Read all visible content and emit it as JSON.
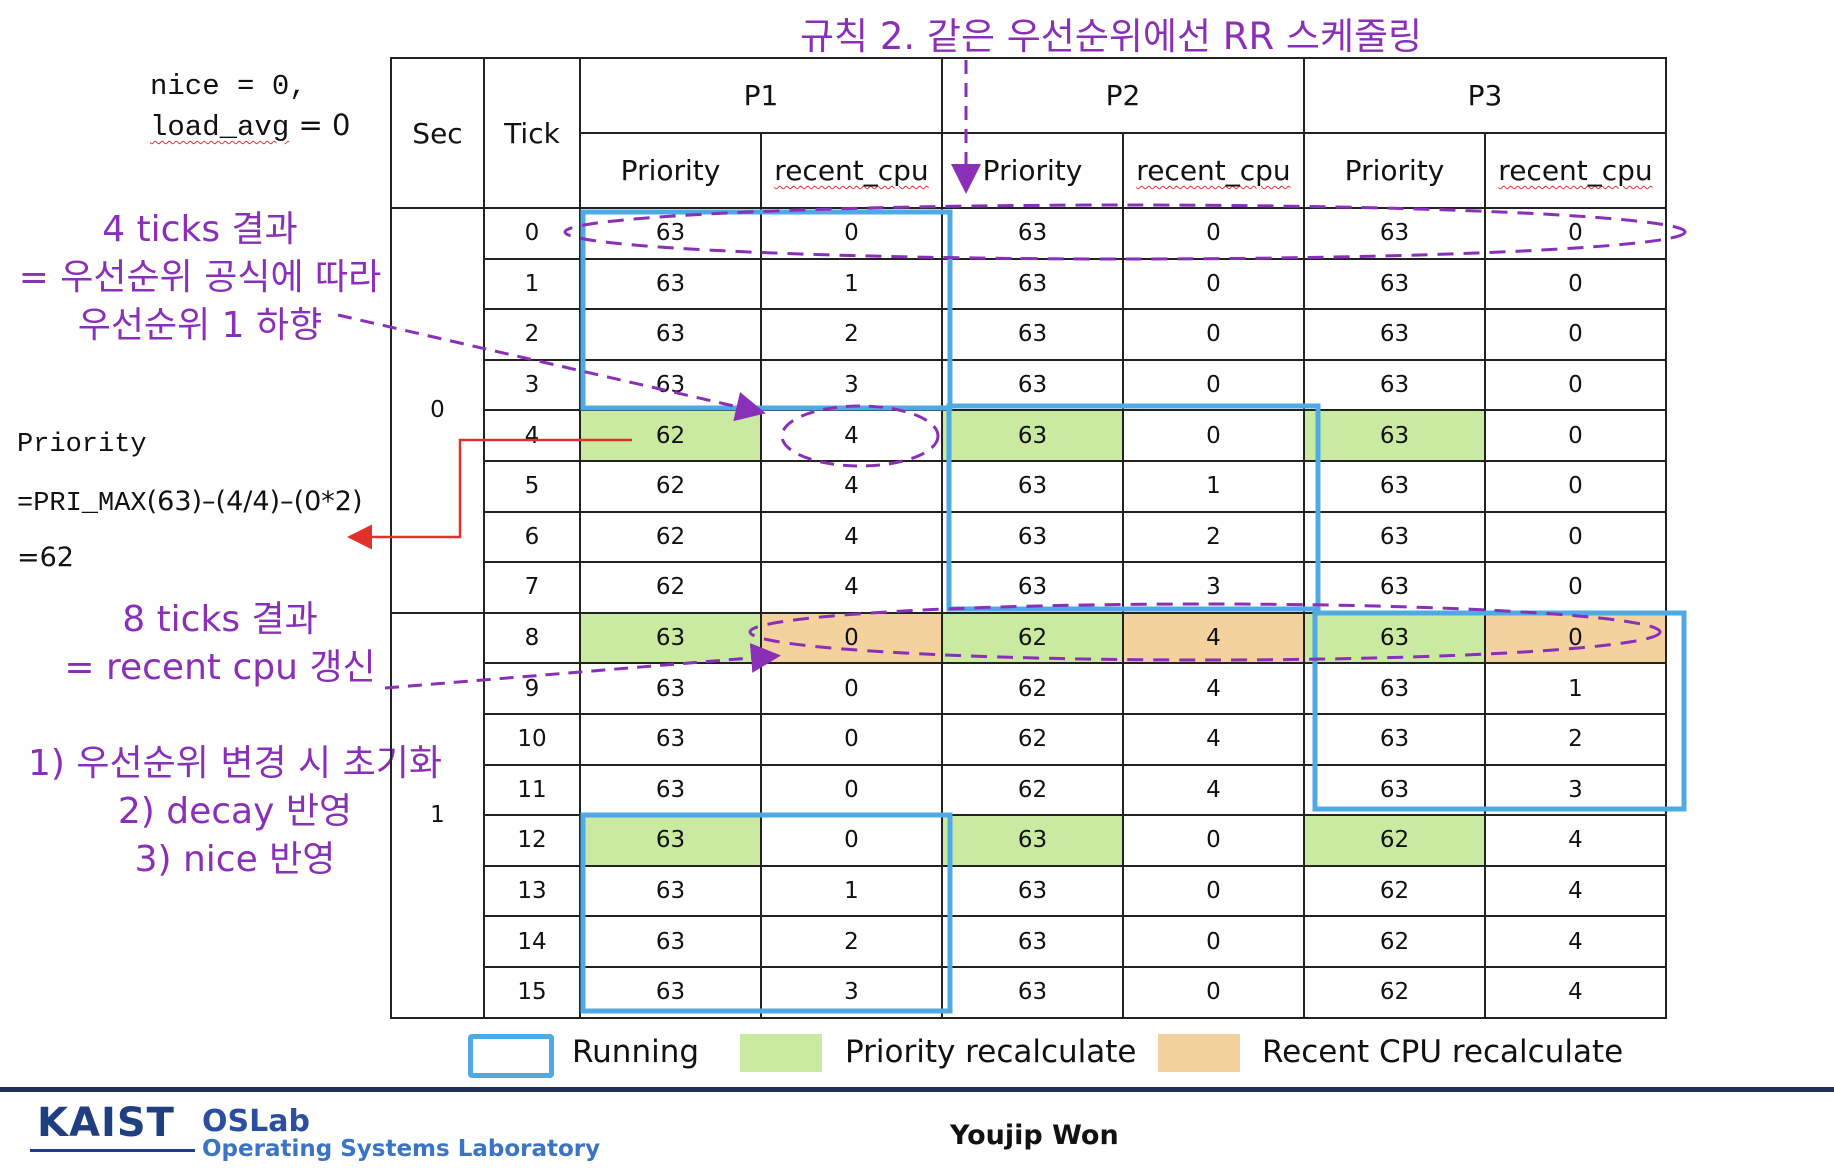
{
  "title": "규칙 2. 같은 우선순위에선 RR 스케줄링",
  "init": {
    "line1": "nice = 0,",
    "line2_var": "load_avg",
    "line2_rest": " = 0"
  },
  "formula": {
    "line1": "Priority",
    "line2_mono": "=PRI_MAX",
    "line2_rest": "(63)–(4/4)–(0*2)",
    "line3": "=62"
  },
  "notes": {
    "ticks4": [
      "4 ticks 결과",
      "= 우선순위 공식에 따라",
      "우선순위 1 하향"
    ],
    "ticks8": [
      "8 ticks 결과",
      "= recent cpu 갱신"
    ],
    "steps": [
      "1) 우선순위 변경 시 초기화",
      "2) decay 반영",
      "3) nice 반영"
    ]
  },
  "table": {
    "headers": {
      "sec": "Sec",
      "tick": "Tick",
      "processes": [
        "P1",
        "P2",
        "P3"
      ],
      "priority": "Priority",
      "recent_cpu": "recent_cpu"
    },
    "secs": [
      "0",
      "1"
    ],
    "rows": [
      [
        "0",
        "63",
        "0",
        "63",
        "0",
        "63",
        "0"
      ],
      [
        "1",
        "63",
        "1",
        "63",
        "0",
        "63",
        "0"
      ],
      [
        "2",
        "63",
        "2",
        "63",
        "0",
        "63",
        "0"
      ],
      [
        "3",
        "63",
        "3",
        "63",
        "0",
        "63",
        "0"
      ],
      [
        "4",
        "62",
        "4",
        "63",
        "0",
        "63",
        "0"
      ],
      [
        "5",
        "62",
        "4",
        "63",
        "1",
        "63",
        "0"
      ],
      [
        "6",
        "62",
        "4",
        "63",
        "2",
        "63",
        "0"
      ],
      [
        "7",
        "62",
        "4",
        "63",
        "3",
        "63",
        "0"
      ],
      [
        "8",
        "63",
        "0",
        "62",
        "4",
        "63",
        "0"
      ],
      [
        "9",
        "63",
        "0",
        "62",
        "4",
        "63",
        "1"
      ],
      [
        "10",
        "63",
        "0",
        "62",
        "4",
        "63",
        "2"
      ],
      [
        "11",
        "63",
        "0",
        "62",
        "4",
        "63",
        "3"
      ],
      [
        "12",
        "63",
        "0",
        "63",
        "0",
        "62",
        "4"
      ],
      [
        "13",
        "63",
        "1",
        "63",
        "0",
        "62",
        "4"
      ],
      [
        "14",
        "63",
        "2",
        "63",
        "0",
        "62",
        "4"
      ],
      [
        "15",
        "63",
        "3",
        "63",
        "0",
        "62",
        "4"
      ]
    ]
  },
  "legend": {
    "running": "Running",
    "priority": "Priority recalculate",
    "recent": "Recent CPU recalculate"
  },
  "colors": {
    "running": "#4ea9e4",
    "priority": "#c9eaa0",
    "recent": "#f3d29d",
    "annotation": "#8a2fb8",
    "arrow": "#e0322a",
    "footer_line": "#1f3158"
  },
  "footer": {
    "logo": "KAIST",
    "lab": "OSLab",
    "lab_full": "Operating Systems Laboratory",
    "author": "Youjip Won"
  }
}
